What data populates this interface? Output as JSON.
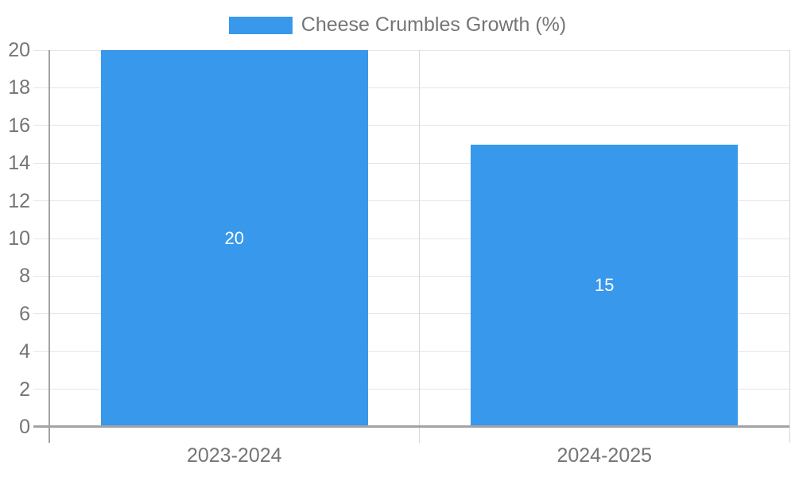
{
  "legend": {
    "position": "top",
    "items": [
      {
        "label": "Cheese Crumbles Growth (%)",
        "color": "#3898ec"
      }
    ]
  },
  "chart_data": {
    "type": "bar",
    "title": "Cheese Crumbles Growth (%)",
    "categories": [
      "2023-2024",
      "2024-2025"
    ],
    "series": [
      {
        "name": "Cheese Crumbles Growth (%)",
        "color": "#3898ec",
        "values": [
          20,
          15
        ]
      }
    ],
    "value_labels": [
      "20",
      "15"
    ],
    "xlabel": "",
    "ylabel": "",
    "ylim": [
      0,
      20
    ],
    "ytick_step": 2,
    "yticks": [
      0,
      2,
      4,
      6,
      8,
      10,
      12,
      14,
      16,
      18,
      20
    ],
    "grid": true,
    "legend_position": "top"
  },
  "colors": {
    "bar": "#3898ec",
    "grid_line": "#e6e6e6",
    "boundary_line": "#d6d6d6",
    "axis_line": "#a3a3a3",
    "tick_label": "#757575",
    "legend_text": "#757575",
    "value_label": "#ffffff",
    "background": "#ffffff"
  }
}
